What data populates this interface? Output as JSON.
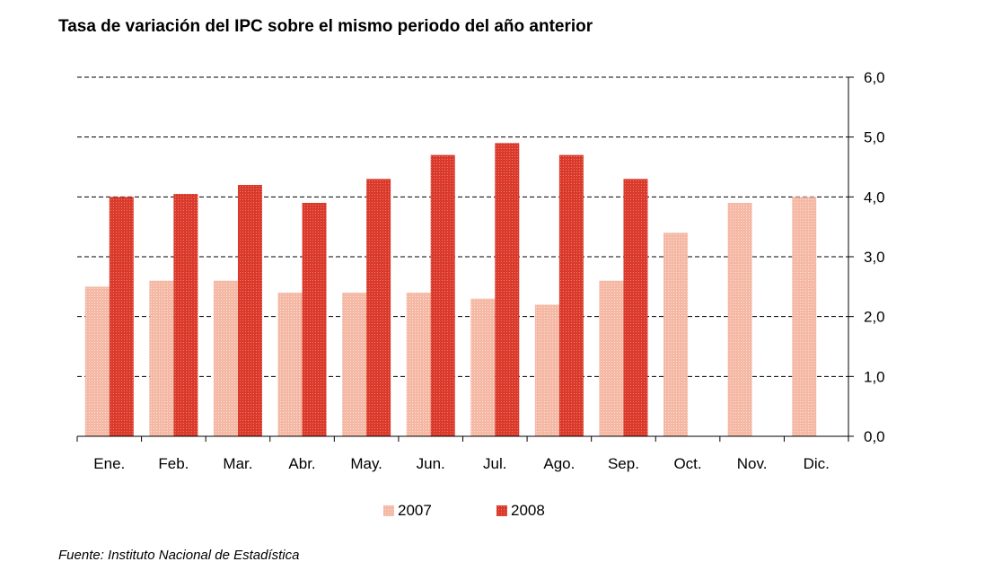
{
  "title": "Tasa de variación del IPC sobre el mismo periodo del año anterior",
  "source": "Fuente: Instituto Nacional de Estadística",
  "colors": {
    "s2007": "#f4b8a4",
    "s2008": "#d93a2b",
    "grid": "#000000"
  },
  "chart_data": {
    "type": "bar",
    "title": "Tasa de variación del IPC sobre el mismo periodo del año anterior",
    "categories": [
      "Ene.",
      "Feb.",
      "Mar.",
      "Abr.",
      "May.",
      "Jun.",
      "Jul.",
      "Ago.",
      "Sep.",
      "Oct.",
      "Nov.",
      "Dic."
    ],
    "series": [
      {
        "name": "2007",
        "values": [
          2.5,
          2.6,
          2.6,
          2.4,
          2.4,
          2.4,
          2.3,
          2.2,
          2.6,
          3.4,
          3.9,
          4.0
        ]
      },
      {
        "name": "2008",
        "values": [
          4.0,
          4.05,
          4.2,
          3.9,
          4.3,
          4.7,
          4.9,
          4.7,
          4.3,
          null,
          null,
          null
        ]
      }
    ],
    "ylim": [
      0,
      6
    ],
    "yticks": [
      "0,0",
      "1,0",
      "2,0",
      "3,0",
      "4,0",
      "5,0",
      "6,0"
    ],
    "xlabel": "",
    "ylabel": "",
    "grid": true,
    "legend": "bottom-center"
  }
}
